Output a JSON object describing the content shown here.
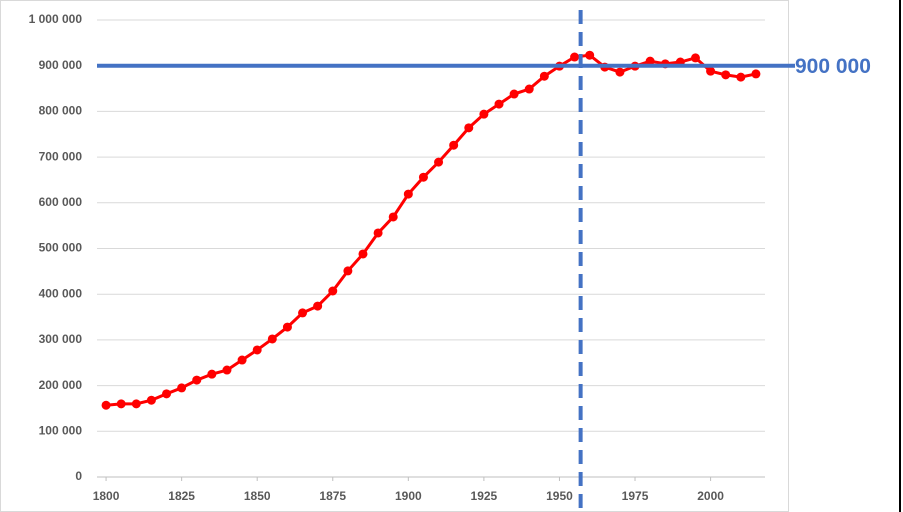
{
  "chart_data": {
    "type": "line",
    "x": [
      1800,
      1805,
      1810,
      1815,
      1820,
      1825,
      1830,
      1835,
      1840,
      1845,
      1850,
      1855,
      1860,
      1865,
      1870,
      1875,
      1880,
      1885,
      1890,
      1895,
      1900,
      1905,
      1910,
      1915,
      1920,
      1925,
      1930,
      1935,
      1940,
      1945,
      1950,
      1955,
      1960,
      1965,
      1970,
      1975,
      1980,
      1985,
      1990,
      1995,
      2000,
      2005,
      2010,
      2015
    ],
    "series": [
      {
        "color": "#ff0000",
        "values": [
          157000,
          160000,
          160000,
          168000,
          182000,
          195000,
          212000,
          225000,
          234000,
          256000,
          278000,
          302000,
          328000,
          359000,
          374000,
          407000,
          451000,
          488000,
          534000,
          569000,
          619000,
          656000,
          689000,
          726000,
          764000,
          794000,
          816000,
          838000,
          849000,
          877000,
          899000,
          919000,
          923000,
          897000,
          886000,
          899000,
          910000,
          904000,
          908000,
          917000,
          888000,
          880000,
          875000,
          882000
        ]
      }
    ],
    "xlim": [
      1797,
      2018
    ],
    "xticks": [
      1800,
      1825,
      1850,
      1875,
      1900,
      1925,
      1950,
      1975,
      2000
    ],
    "ylim": [
      0,
      1000000
    ],
    "yticks": [
      0,
      {
        "value": 100000,
        "label": "100 000"
      },
      {
        "value": 200000,
        "label": "200 000"
      },
      {
        "value": 300000,
        "label": "300 000"
      },
      {
        "value": 400000,
        "label": "400 000"
      },
      {
        "value": 500000,
        "label": "500 000"
      },
      {
        "value": 600000,
        "label": "600 000"
      },
      {
        "value": 700000,
        "label": "700 000"
      },
      {
        "value": 800000,
        "label": "800 000"
      },
      {
        "value": 900000,
        "label": "900 000"
      },
      {
        "value": 1000000,
        "label": "1 000 000"
      }
    ],
    "grid": true,
    "reference_line": {
      "value": 900000,
      "label": "900 000",
      "color": "#4472c4"
    },
    "vertical_line": {
      "x": 1957,
      "color": "#4472c4"
    }
  }
}
